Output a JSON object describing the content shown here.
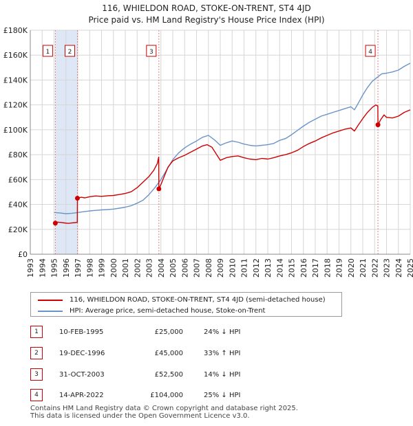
{
  "title_line1": "116, WHIELDON ROAD, STOKE-ON-TRENT, ST4 4JD",
  "title_line2": "Price paid vs. HM Land Registry's House Price Index (HPI)",
  "chart_data": {
    "type": "line",
    "title": "116, WHIELDON ROAD, STOKE-ON-TRENT, ST4 4JD — Price paid vs. HM Land Registry's House Price Index (HPI)",
    "xlabel": "",
    "ylabel": "",
    "xlim": [
      1993,
      2025
    ],
    "ylim": [
      0,
      180000
    ],
    "y_ticks": [
      0,
      20000,
      40000,
      60000,
      80000,
      100000,
      120000,
      140000,
      160000,
      180000
    ],
    "y_tick_labels": [
      "£0",
      "£20K",
      "£40K",
      "£60K",
      "£80K",
      "£100K",
      "£120K",
      "£140K",
      "£160K",
      "£180K"
    ],
    "x_ticks": [
      1993,
      1994,
      1995,
      1996,
      1997,
      1998,
      1999,
      2000,
      2001,
      2002,
      2003,
      2004,
      2005,
      2006,
      2007,
      2008,
      2009,
      2010,
      2011,
      2012,
      2013,
      2014,
      2015,
      2016,
      2017,
      2018,
      2019,
      2020,
      2021,
      2022,
      2023,
      2024,
      2025
    ],
    "grid": true,
    "colors": {
      "property": "#cc0000",
      "hpi": "#6a93c8",
      "shade": "#dde7f5",
      "grid": "#d6d6d6",
      "marker_line": "#e08080"
    },
    "series": [
      {
        "name": "116, WHIELDON ROAD, STOKE-ON-TRENT, ST4 4JD (semi-detached house)",
        "color": "#cc0000",
        "points": [
          [
            1995.11,
            25000
          ],
          [
            1995.3,
            25800
          ],
          [
            1995.6,
            25500
          ],
          [
            1995.9,
            25100
          ],
          [
            1996.2,
            24800
          ],
          [
            1996.5,
            25200
          ],
          [
            1996.8,
            25400
          ],
          [
            1996.96,
            25600
          ],
          [
            1996.97,
            45000
          ],
          [
            1997.3,
            45800
          ],
          [
            1997.6,
            45300
          ],
          [
            1998.0,
            46200
          ],
          [
            1998.5,
            46800
          ],
          [
            1999.0,
            46500
          ],
          [
            1999.5,
            47000
          ],
          [
            2000.0,
            47200
          ],
          [
            2000.5,
            48000
          ],
          [
            2001.0,
            48800
          ],
          [
            2001.5,
            50200
          ],
          [
            2002.0,
            53500
          ],
          [
            2002.5,
            58000
          ],
          [
            2003.0,
            62500
          ],
          [
            2003.4,
            67500
          ],
          [
            2003.7,
            73000
          ],
          [
            2003.82,
            78000
          ],
          [
            2003.83,
            52500
          ],
          [
            2004.0,
            56000
          ],
          [
            2004.3,
            63000
          ],
          [
            2004.6,
            70000
          ],
          [
            2005.0,
            75000
          ],
          [
            2005.5,
            77500
          ],
          [
            2006.0,
            79500
          ],
          [
            2006.5,
            82000
          ],
          [
            2007.0,
            84500
          ],
          [
            2007.5,
            87000
          ],
          [
            2007.9,
            88000
          ],
          [
            2008.3,
            86000
          ],
          [
            2008.7,
            80000
          ],
          [
            2009.0,
            75500
          ],
          [
            2009.5,
            77500
          ],
          [
            2010.0,
            78500
          ],
          [
            2010.5,
            79000
          ],
          [
            2011.0,
            77500
          ],
          [
            2011.5,
            76500
          ],
          [
            2012.0,
            76000
          ],
          [
            2012.5,
            77000
          ],
          [
            2013.0,
            76500
          ],
          [
            2013.5,
            77500
          ],
          [
            2014.0,
            79000
          ],
          [
            2014.5,
            80000
          ],
          [
            2015.0,
            81500
          ],
          [
            2015.5,
            83500
          ],
          [
            2016.0,
            86500
          ],
          [
            2016.5,
            89000
          ],
          [
            2017.0,
            91000
          ],
          [
            2017.5,
            93500
          ],
          [
            2018.0,
            95500
          ],
          [
            2018.5,
            97500
          ],
          [
            2019.0,
            99000
          ],
          [
            2019.5,
            100500
          ],
          [
            2020.0,
            101500
          ],
          [
            2020.3,
            99000
          ],
          [
            2020.6,
            103500
          ],
          [
            2021.0,
            109000
          ],
          [
            2021.4,
            114000
          ],
          [
            2021.8,
            118000
          ],
          [
            2022.1,
            120000
          ],
          [
            2022.27,
            119000
          ],
          [
            2022.28,
            104000
          ],
          [
            2022.5,
            108000
          ],
          [
            2022.8,
            112000
          ],
          [
            2023.0,
            110000
          ],
          [
            2023.5,
            109500
          ],
          [
            2024.0,
            111000
          ],
          [
            2024.5,
            114000
          ],
          [
            2025.0,
            116000
          ]
        ]
      },
      {
        "name": "HPI: Average price, semi-detached house, Stoke-on-Trent",
        "color": "#6a93c8",
        "points": [
          [
            1995.0,
            33500
          ],
          [
            1995.5,
            33200
          ],
          [
            1996.0,
            32600
          ],
          [
            1996.5,
            32900
          ],
          [
            1997.0,
            33500
          ],
          [
            1997.5,
            34200
          ],
          [
            1998.0,
            34800
          ],
          [
            1998.5,
            35200
          ],
          [
            1999.0,
            35600
          ],
          [
            1999.5,
            35900
          ],
          [
            2000.0,
            36300
          ],
          [
            2000.5,
            37000
          ],
          [
            2001.0,
            37800
          ],
          [
            2001.5,
            39000
          ],
          [
            2002.0,
            41000
          ],
          [
            2002.5,
            43500
          ],
          [
            2003.0,
            48000
          ],
          [
            2003.5,
            53500
          ],
          [
            2004.0,
            60000
          ],
          [
            2004.5,
            68000
          ],
          [
            2005.0,
            76000
          ],
          [
            2005.5,
            81500
          ],
          [
            2006.0,
            85500
          ],
          [
            2006.5,
            88500
          ],
          [
            2007.0,
            91000
          ],
          [
            2007.5,
            94000
          ],
          [
            2008.0,
            95500
          ],
          [
            2008.5,
            92000
          ],
          [
            2009.0,
            87500
          ],
          [
            2009.5,
            89500
          ],
          [
            2010.0,
            91000
          ],
          [
            2010.5,
            90000
          ],
          [
            2011.0,
            88500
          ],
          [
            2011.5,
            87500
          ],
          [
            2012.0,
            87000
          ],
          [
            2012.5,
            87500
          ],
          [
            2013.0,
            88000
          ],
          [
            2013.5,
            89000
          ],
          [
            2014.0,
            91500
          ],
          [
            2014.5,
            93000
          ],
          [
            2015.0,
            96000
          ],
          [
            2015.5,
            99500
          ],
          [
            2016.0,
            103000
          ],
          [
            2016.5,
            106000
          ],
          [
            2017.0,
            108500
          ],
          [
            2017.5,
            111000
          ],
          [
            2018.0,
            112500
          ],
          [
            2018.5,
            114000
          ],
          [
            2019.0,
            115500
          ],
          [
            2019.5,
            117000
          ],
          [
            2020.0,
            118500
          ],
          [
            2020.3,
            116000
          ],
          [
            2020.6,
            121000
          ],
          [
            2021.0,
            128000
          ],
          [
            2021.4,
            134000
          ],
          [
            2021.8,
            139000
          ],
          [
            2022.2,
            142000
          ],
          [
            2022.6,
            145000
          ],
          [
            2023.0,
            145500
          ],
          [
            2023.5,
            146500
          ],
          [
            2024.0,
            148000
          ],
          [
            2024.5,
            151000
          ],
          [
            2025.0,
            153500
          ]
        ]
      }
    ],
    "shaded_ranges": [
      [
        1995.11,
        1996.97
      ]
    ],
    "transactions": [
      {
        "num": "1",
        "x": 1995.11,
        "y": 25000,
        "date": "10-FEB-1995",
        "price": "£25,000",
        "hpi": "24% ↓ HPI"
      },
      {
        "num": "2",
        "x": 1996.97,
        "y": 45000,
        "date": "19-DEC-1996",
        "price": "£45,000",
        "hpi": "33% ↑ HPI"
      },
      {
        "num": "3",
        "x": 2003.83,
        "y": 52500,
        "date": "31-OCT-2003",
        "price": "£52,500",
        "hpi": "14% ↓ HPI"
      },
      {
        "num": "4",
        "x": 2022.28,
        "y": 104000,
        "date": "14-APR-2022",
        "price": "£104,000",
        "hpi": "25% ↓ HPI"
      }
    ]
  },
  "legend": {
    "property_label": "116, WHIELDON ROAD, STOKE-ON-TRENT, ST4 4JD (semi-detached house)",
    "hpi_label": "HPI: Average price, semi-detached house, Stoke-on-Trent"
  },
  "footer_line1": "Contains HM Land Registry data © Crown copyright and database right 2025.",
  "footer_line2": "This data is licensed under the Open Government Licence v3.0."
}
